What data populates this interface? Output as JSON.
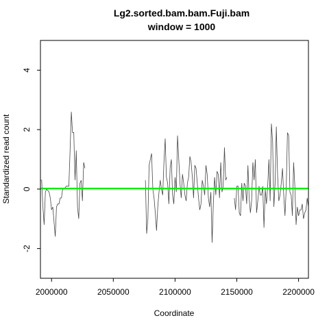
{
  "chart_data": {
    "type": "line",
    "title": "Lg2.sorted.bam.bam.Fuji.bam",
    "subtitle": "window = 1000",
    "xlabel": "Coordinate",
    "ylabel": "Standardized read count",
    "xlim": [
      1991000,
      2208000
    ],
    "ylim": [
      -3,
      5
    ],
    "xticks": [
      2000000,
      2050000,
      2100000,
      2150000,
      2200000
    ],
    "xtick_labels": [
      "2000000",
      "2050000",
      "2100000",
      "2150000",
      "2200000"
    ],
    "yticks": [
      -2,
      0,
      2,
      4
    ],
    "ytick_labels": [
      "-2",
      "0",
      "2",
      "4"
    ],
    "grid": false,
    "legend": "none",
    "reference_line": {
      "y": 0.02,
      "color": "#00ee00"
    },
    "series": [
      {
        "color": "#444444",
        "segments": [
          [
            [
              1991000,
              0.3
            ],
            [
              1992000,
              0.3
            ],
            [
              1993000,
              -0.6
            ],
            [
              1994000,
              -1.2
            ],
            [
              1995000,
              -0.1
            ],
            [
              1996000,
              0.0
            ],
            [
              1997000,
              -0.05
            ],
            [
              1998000,
              -0.1
            ],
            [
              1999000,
              -0.3
            ],
            [
              2000000,
              -0.7
            ],
            [
              2001000,
              -0.6
            ],
            [
              2002000,
              -1.1
            ],
            [
              2003000,
              -1.6
            ],
            [
              2004000,
              -0.6
            ],
            [
              2005000,
              -0.5
            ],
            [
              2006000,
              -0.5
            ],
            [
              2007000,
              -0.3
            ],
            [
              2008000,
              -0.3
            ],
            [
              2009000,
              0.0
            ],
            [
              2010000,
              0.0
            ],
            [
              2011000,
              0.05
            ],
            [
              2012000,
              0.1
            ],
            [
              2013000,
              0.1
            ],
            [
              2014000,
              0.1
            ],
            [
              2015000,
              1.3
            ],
            [
              2016000,
              2.6
            ],
            [
              2017000,
              1.9
            ],
            [
              2018000,
              1.9
            ],
            [
              2019000,
              0.3
            ],
            [
              2020000,
              1.3
            ],
            [
              2021000,
              -0.6
            ],
            [
              2022000,
              -1.0
            ],
            [
              2023000,
              0.2
            ],
            [
              2024000,
              0.3
            ],
            [
              2025000,
              -0.4
            ],
            [
              2026000,
              0.9
            ],
            [
              2027000,
              0.7
            ]
          ],
          [
            [
              2076000,
              0.3
            ],
            [
              2077000,
              -1.5
            ],
            [
              2078000,
              -1.0
            ],
            [
              2079000,
              0.8
            ],
            [
              2080000,
              1.0
            ],
            [
              2081000,
              1.2
            ],
            [
              2082000,
              0.0
            ],
            [
              2083000,
              -0.3
            ],
            [
              2084000,
              -0.8
            ],
            [
              2085000,
              -1.4
            ],
            [
              2086000,
              -0.6
            ],
            [
              2087000,
              -0.1
            ],
            [
              2088000,
              0.3
            ],
            [
              2089000,
              0.0
            ],
            [
              2090000,
              -0.2
            ],
            [
              2091000,
              0.9
            ],
            [
              2092000,
              1.7
            ],
            [
              2093000,
              0.4
            ],
            [
              2094000,
              0.2
            ],
            [
              2095000,
              -0.5
            ],
            [
              2096000,
              0.7
            ],
            [
              2097000,
              1.0
            ],
            [
              2098000,
              -0.2
            ],
            [
              2099000,
              -0.5
            ],
            [
              2100000,
              0.4
            ],
            [
              2101000,
              -0.1
            ],
            [
              2102000,
              1.8
            ],
            [
              2103000,
              1.0
            ],
            [
              2104000,
              0.2
            ],
            [
              2105000,
              -0.3
            ],
            [
              2106000,
              0.5
            ],
            [
              2107000,
              0.2
            ],
            [
              2108000,
              -0.2
            ],
            [
              2109000,
              -0.4
            ],
            [
              2110000,
              0.2
            ],
            [
              2111000,
              0.4
            ],
            [
              2112000,
              1.1
            ],
            [
              2113000,
              0.9
            ],
            [
              2114000,
              0.4
            ],
            [
              2115000,
              -0.3
            ],
            [
              2116000,
              0.8
            ],
            [
              2117000,
              0.7
            ],
            [
              2118000,
              0.2
            ],
            [
              2119000,
              -0.3
            ],
            [
              2120000,
              -0.7
            ],
            [
              2121000,
              -0.5
            ],
            [
              2122000,
              0.3
            ],
            [
              2123000,
              0.1
            ],
            [
              2124000,
              -0.2
            ],
            [
              2125000,
              0.8
            ],
            [
              2126000,
              0.5
            ],
            [
              2127000,
              -0.3
            ],
            [
              2128000,
              -0.6
            ],
            [
              2129000,
              -0.1
            ],
            [
              2130000,
              -1.8
            ],
            [
              2131000,
              -0.5
            ],
            [
              2132000,
              0.4
            ],
            [
              2133000,
              -0.2
            ],
            [
              2134000,
              0.6
            ],
            [
              2135000,
              0.5
            ],
            [
              2136000,
              -0.3
            ],
            [
              2137000,
              0.9
            ],
            [
              2138000,
              -0.1
            ],
            [
              2139000,
              0.1
            ],
            [
              2140000,
              1.4
            ],
            [
              2141000,
              0.3
            ],
            [
              2142000,
              0.4
            ]
          ],
          [
            [
              2148000,
              -0.3
            ],
            [
              2149000,
              -0.7
            ],
            [
              2150000,
              0.1
            ],
            [
              2151000,
              0.1
            ],
            [
              2152000,
              -0.8
            ],
            [
              2153000,
              -0.9
            ],
            [
              2154000,
              0.2
            ],
            [
              2155000,
              -0.4
            ],
            [
              2156000,
              0.2
            ],
            [
              2157000,
              0.1
            ],
            [
              2158000,
              -0.5
            ],
            [
              2159000,
              0.8
            ],
            [
              2160000,
              -0.3
            ],
            [
              2161000,
              -0.8
            ],
            [
              2162000,
              -0.4
            ],
            [
              2163000,
              0.9
            ],
            [
              2164000,
              0.3
            ],
            [
              2165000,
              1.0
            ],
            [
              2166000,
              -0.8
            ],
            [
              2167000,
              -0.4
            ],
            [
              2168000,
              0.1
            ],
            [
              2169000,
              -0.2
            ],
            [
              2170000,
              -0.2
            ],
            [
              2171000,
              0.1
            ],
            [
              2172000,
              -1.3
            ],
            [
              2173000,
              0.0
            ],
            [
              2174000,
              -0.5
            ],
            [
              2175000,
              0.1
            ],
            [
              2176000,
              1.0
            ],
            [
              2177000,
              -0.4
            ],
            [
              2178000,
              2.2
            ],
            [
              2179000,
              1.6
            ],
            [
              2180000,
              -0.6
            ],
            [
              2181000,
              0.2
            ],
            [
              2182000,
              2.1
            ],
            [
              2183000,
              0.5
            ],
            [
              2184000,
              -0.4
            ],
            [
              2185000,
              -0.2
            ],
            [
              2186000,
              0.2
            ],
            [
              2187000,
              0.7
            ],
            [
              2188000,
              -0.2
            ],
            [
              2189000,
              -0.9
            ],
            [
              2190000,
              0.0
            ],
            [
              2191000,
              1.9
            ],
            [
              2192000,
              1.8
            ],
            [
              2193000,
              -0.1
            ],
            [
              2194000,
              -0.2
            ],
            [
              2195000,
              -0.9
            ],
            [
              2196000,
              0.9
            ],
            [
              2197000,
              0.1
            ],
            [
              2198000,
              -1.2
            ],
            [
              2199000,
              -0.6
            ],
            [
              2200000,
              -0.9
            ],
            [
              2201000,
              -0.7
            ],
            [
              2202000,
              -0.7
            ],
            [
              2203000,
              -0.5
            ],
            [
              2204000,
              -1.0
            ],
            [
              2205000,
              -0.8
            ],
            [
              2206000,
              -0.7
            ],
            [
              2207000,
              -0.3
            ],
            [
              2208000,
              -0.6
            ]
          ]
        ]
      }
    ]
  }
}
